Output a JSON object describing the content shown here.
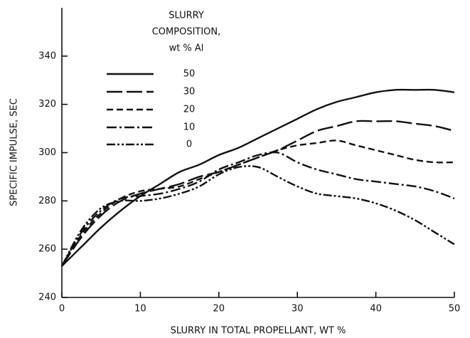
{
  "chart_data": {
    "type": "line",
    "legend_title": [
      "SLURRY",
      "COMPOSITION,",
      "wt % Al"
    ],
    "x_label": "SLURRY IN TOTAL PROPELLANT, WT %",
    "y_label": "SPECIFIC IMPULSE, SEC",
    "x": [
      0,
      2.5,
      5,
      7.5,
      10,
      12.5,
      15,
      17.5,
      20,
      22.5,
      25,
      27.5,
      30,
      32.5,
      35,
      37.5,
      40,
      42.5,
      45,
      47.5,
      50
    ],
    "series": [
      {
        "name": "50",
        "color": "#111111",
        "dash": "solid",
        "values": [
          253,
          261,
          269,
          276,
          282,
          287,
          292,
          295,
          299,
          302,
          306,
          310,
          314,
          318,
          321,
          323,
          325,
          326,
          326,
          326,
          325
        ]
      },
      {
        "name": "30",
        "color": "#111111",
        "dash": "longdash",
        "values": [
          253,
          265,
          274,
          280,
          283,
          285,
          287,
          290,
          292,
          295,
          298,
          301,
          305,
          309,
          311,
          313,
          313,
          313,
          312,
          311,
          309
        ]
      },
      {
        "name": "20",
        "color": "#111111",
        "dash": "dash",
        "values": [
          253,
          266,
          275,
          281,
          284,
          285,
          286,
          289,
          292,
          295,
          298,
          301,
          303,
          304,
          305,
          303,
          301,
          299,
          297,
          296,
          296
        ]
      },
      {
        "name": "10",
        "color": "#111111",
        "dash": "dashdot",
        "values": [
          253,
          267,
          276,
          281,
          282,
          283,
          285,
          288,
          293,
          296,
          299,
          300,
          296,
          293,
          291,
          289,
          288,
          287,
          286,
          284,
          281
        ]
      },
      {
        "name": "0",
        "color": "#111111",
        "dash": "dashdotdot",
        "values": [
          253,
          268,
          277,
          280,
          280,
          281,
          283,
          286,
          291,
          294,
          294,
          290,
          286,
          283,
          282,
          281,
          279,
          276,
          272,
          267,
          262
        ]
      }
    ],
    "xlim": [
      0,
      50
    ],
    "xticks": [
      0,
      10,
      20,
      30,
      40,
      50
    ],
    "ylim": [
      240,
      360
    ],
    "yticks": [
      240,
      260,
      280,
      300,
      320,
      340
    ],
    "grid": false
  }
}
